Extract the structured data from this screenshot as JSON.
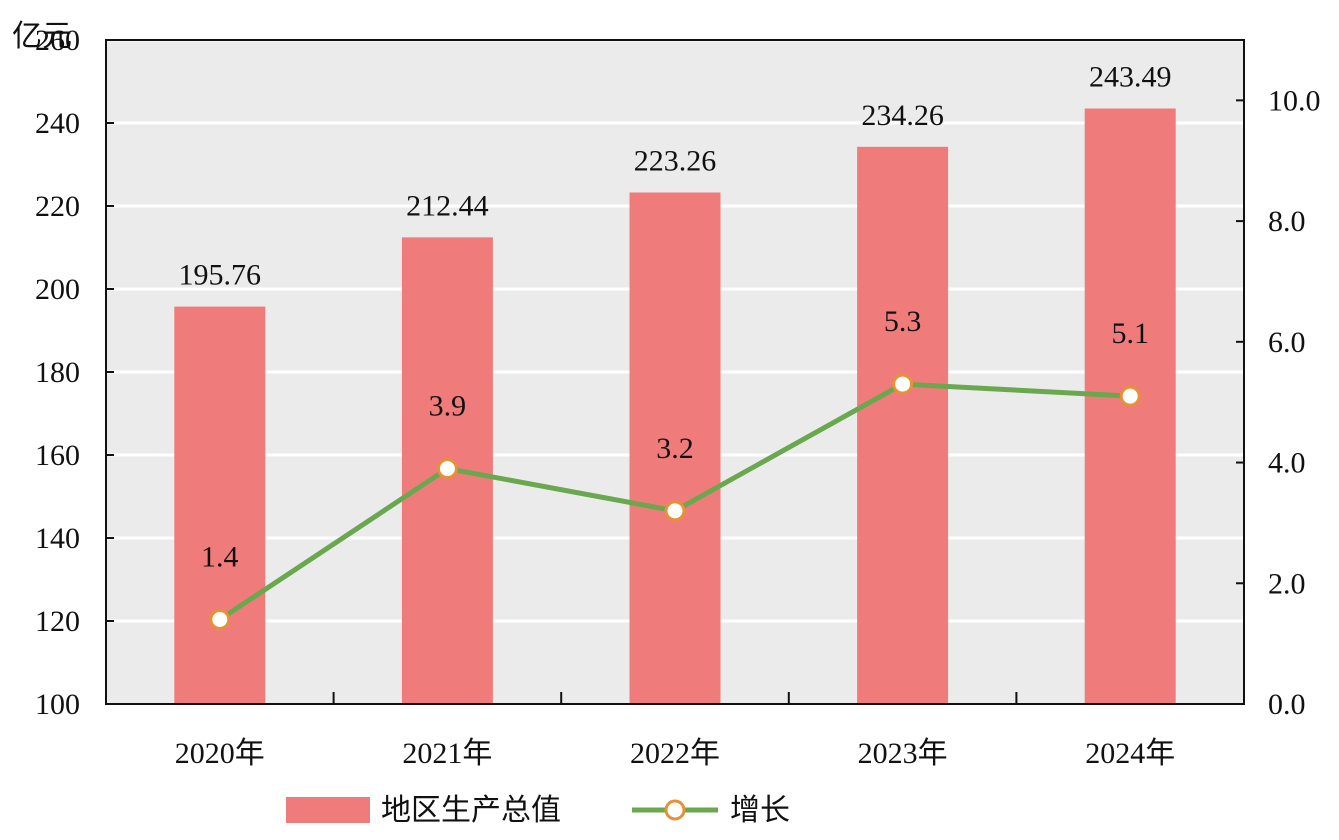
{
  "chart_data": {
    "type": "bar",
    "title": "",
    "y_unit_label": "亿元",
    "categories": [
      "2020年",
      "2021年",
      "2022年",
      "2023年",
      "2024年"
    ],
    "series": [
      {
        "name": "地区生产总值",
        "type": "bar",
        "axis": "left",
        "values": [
          195.76,
          212.44,
          223.26,
          234.26,
          243.49
        ],
        "value_labels": [
          "195.76",
          "212.44",
          "223.26",
          "234.26",
          "243.49"
        ],
        "color": "#f07b7b"
      },
      {
        "name": "增长",
        "type": "line",
        "axis": "right",
        "values": [
          1.4,
          3.9,
          3.2,
          5.3,
          5.1
        ],
        "value_labels": [
          "1.4",
          "3.9",
          "3.2",
          "5.3",
          "5.1"
        ],
        "color": "#6aa84f",
        "marker_stroke": "#e69138",
        "marker_fill": "#ffffff"
      }
    ],
    "y_left": {
      "min": 100,
      "max": 260,
      "ticks": [
        100,
        120,
        140,
        160,
        180,
        200,
        220,
        240,
        260
      ]
    },
    "y_right": {
      "min": 0,
      "max": 11,
      "ticks": [
        0,
        2,
        4,
        6,
        8,
        10
      ],
      "tick_labels": [
        "0.0",
        "2.0",
        "4.0",
        "6.0",
        "8.0",
        "10.0"
      ]
    },
    "plot_background": "#ebebeb",
    "grid": true,
    "legend_position": "bottom"
  }
}
